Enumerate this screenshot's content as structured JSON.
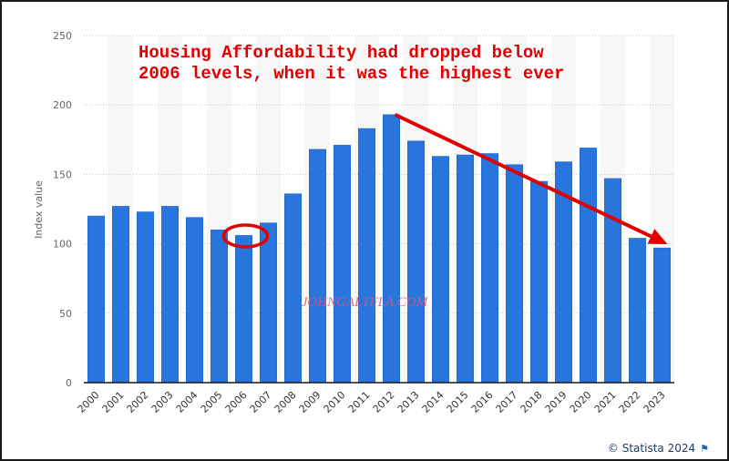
{
  "chart_data": {
    "type": "bar",
    "title": "",
    "xlabel": "",
    "ylabel": "Index value",
    "ylim": [
      0,
      250
    ],
    "yticks": [
      0,
      50,
      100,
      150,
      200,
      250
    ],
    "grid": true,
    "categories": [
      "2000",
      "2001",
      "2002",
      "2003",
      "2004",
      "2005",
      "2006",
      "2007",
      "2008",
      "2009",
      "2010",
      "2011",
      "2012",
      "2013",
      "2014",
      "2015",
      "2016",
      "2017",
      "2018",
      "2019",
      "2020",
      "2021",
      "2022",
      "2023"
    ],
    "values": [
      120,
      127,
      123,
      127,
      119,
      110,
      106,
      115,
      136,
      168,
      171,
      183,
      193,
      174,
      163,
      164,
      165,
      157,
      145,
      159,
      169,
      147,
      104,
      97
    ],
    "bar_color": "#2876dd",
    "annotations": {
      "text_lines": [
        "Housing Affordability had dropped below",
        "2006 levels, when it was the highest ever"
      ],
      "text_color": "#e00000",
      "circled_category": "2006",
      "arrow": {
        "from_category": "2012",
        "from_value": 193,
        "to_category": "2023",
        "to_value": 103
      },
      "watermark": "JOHNGALTFLA.COM"
    }
  },
  "footer": {
    "credit": "© Statista 2024",
    "flag_icon": "flag-icon"
  }
}
